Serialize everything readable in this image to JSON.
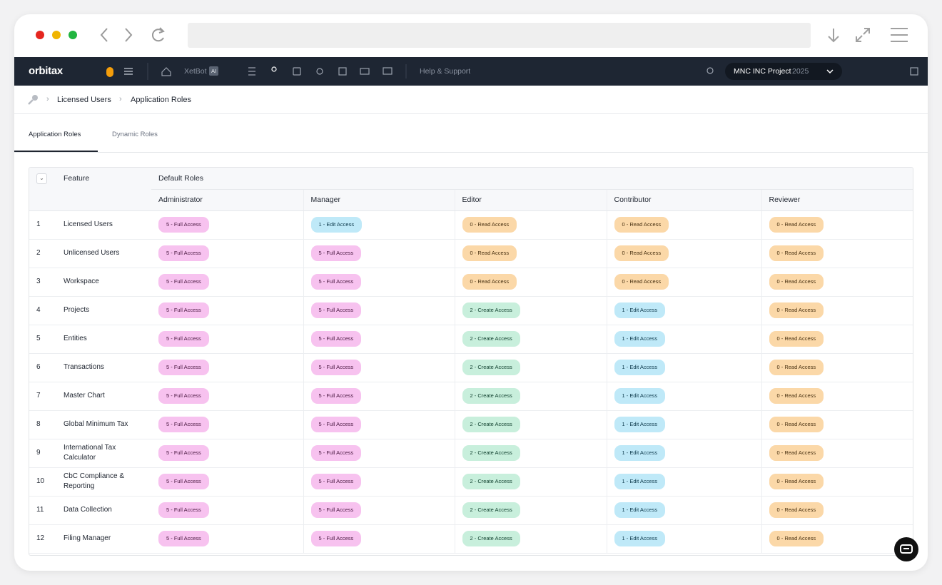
{
  "app_bar": {
    "logo": "orbitax",
    "xetbot": "XetBot",
    "ai_badge": "AI",
    "help": "Help & Support",
    "project": "MNC INC Project",
    "year": "2025"
  },
  "breadcrumb": [
    "Licensed Users",
    "Application Roles"
  ],
  "tabs": [
    "Application Roles",
    "Dynamic Roles"
  ],
  "table": {
    "feature_header": "Feature",
    "group_header": "Default Roles",
    "roles": [
      "Administrator",
      "Manager",
      "Editor",
      "Contributor",
      "Reviewer"
    ],
    "rows": [
      {
        "number": 1,
        "feature": "Licensed Users",
        "access": [
          "5 - Full Access",
          "1 - Edit Access",
          "0 - Read Access",
          "0 - Read Access",
          "0 - Read Access"
        ]
      },
      {
        "number": 2,
        "feature": "Unlicensed Users",
        "access": [
          "5 - Full Access",
          "5 - Full Access",
          "0 - Read Access",
          "0 - Read Access",
          "0 - Read Access"
        ]
      },
      {
        "number": 3,
        "feature": "Workspace",
        "access": [
          "5 - Full Access",
          "5 - Full Access",
          "0 - Read Access",
          "0 - Read Access",
          "0 - Read Access"
        ]
      },
      {
        "number": 4,
        "feature": "Projects",
        "access": [
          "5 - Full Access",
          "5 - Full Access",
          "2 - Create Access",
          "1 - Edit Access",
          "0 - Read Access"
        ]
      },
      {
        "number": 5,
        "feature": "Entities",
        "access": [
          "5 - Full Access",
          "5 - Full Access",
          "2 - Create Access",
          "1 - Edit Access",
          "0 - Read Access"
        ]
      },
      {
        "number": 6,
        "feature": "Transactions",
        "access": [
          "5 - Full Access",
          "5 - Full Access",
          "2 - Create Access",
          "1 - Edit Access",
          "0 - Read Access"
        ]
      },
      {
        "number": 7,
        "feature": "Master Chart",
        "access": [
          "5 - Full Access",
          "5 - Full Access",
          "2 - Create Access",
          "1 - Edit Access",
          "0 - Read Access"
        ]
      },
      {
        "number": 8,
        "feature": "Global Minimum Tax",
        "access": [
          "5 - Full Access",
          "5 - Full Access",
          "2 - Create Access",
          "1 - Edit Access",
          "0 - Read Access"
        ]
      },
      {
        "number": 9,
        "feature": "International Tax Calculator",
        "access": [
          "5 - Full Access",
          "5 - Full Access",
          "2 - Create Access",
          "1 - Edit Access",
          "0 - Read Access"
        ]
      },
      {
        "number": 10,
        "feature": "CbC Compliance & Reporting",
        "access": [
          "5 - Full Access",
          "5 - Full Access",
          "2 - Create Access",
          "1 - Edit Access",
          "0 - Read Access"
        ]
      },
      {
        "number": 11,
        "feature": "Data Collection",
        "access": [
          "5 - Full Access",
          "5 - Full Access",
          "2 - Create Access",
          "1 - Edit Access",
          "0 - Read Access"
        ]
      },
      {
        "number": 12,
        "feature": "Filing Manager",
        "access": [
          "5 - Full Access",
          "5 - Full Access",
          "2 - Create Access",
          "1 - Edit Access",
          "0 - Read Access"
        ]
      }
    ]
  }
}
